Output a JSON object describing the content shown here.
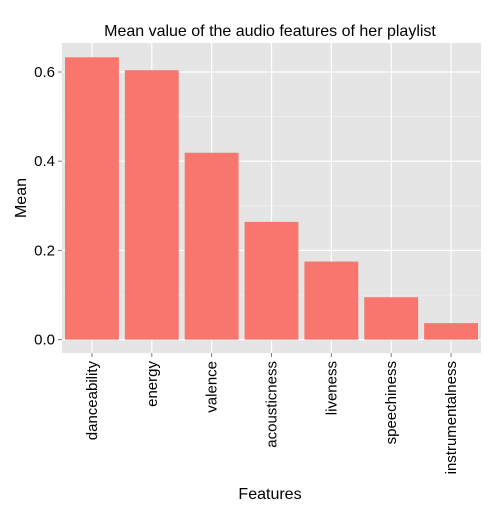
{
  "chart_data": {
    "type": "bar",
    "title": "Mean value of the audio features of her playlist",
    "xlabel": "Features",
    "ylabel": "Mean",
    "categories": [
      "danceability",
      "energy",
      "valence",
      "acousticness",
      "liveness",
      "speechiness",
      "instrumentalness"
    ],
    "values": [
      0.633,
      0.604,
      0.419,
      0.264,
      0.175,
      0.095,
      0.037
    ],
    "ylim": [
      -0.03,
      0.665
    ],
    "yticks": [
      0.0,
      0.2,
      0.4,
      0.6
    ],
    "ytick_labels": [
      "0.0",
      "0.2",
      "0.4",
      "0.6"
    ],
    "grid": true,
    "colors": {
      "bar": "#F8766D",
      "panel": "#E5E5E5",
      "grid_major": "#FFFFFF",
      "grid_minor": "#F2F2F2",
      "ticks": "#7F7F7F"
    }
  }
}
